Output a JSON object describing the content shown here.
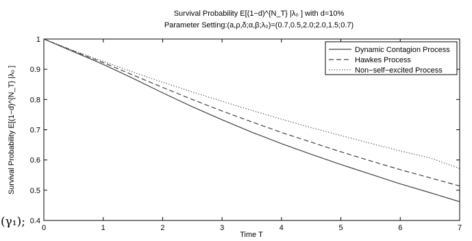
{
  "side_text": "(γ₁);",
  "chart_data": {
    "type": "line",
    "title": "Survival Probability E[(1−d)^{N_T} |λ₀ ] with d=10%",
    "subtitle": "Parameter Setting:(a,ρ,δ;α,β;λ₀)=(0.7,0.5,2.0;2.0,1.5;0.7)",
    "xlabel": "Time T",
    "ylabel": "Survival Probability E[(1−d)^{N_T} |λ₀ ]",
    "xlim": [
      0,
      7
    ],
    "ylim": [
      0.4,
      1
    ],
    "xticks": [
      0,
      1,
      2,
      3,
      4,
      5,
      6,
      7
    ],
    "yticks": [
      0.4,
      0.5,
      0.6,
      0.7,
      0.8,
      0.9,
      1
    ],
    "grid": false,
    "legend_position": "top-right",
    "x": [
      0,
      0.5,
      1,
      1.5,
      2,
      2.5,
      3,
      3.5,
      4,
      4.5,
      5,
      5.5,
      6,
      6.5,
      7
    ],
    "series": [
      {
        "name": "Dynamic Contagion Process",
        "style": "solid",
        "color": "#404040",
        "values": [
          1.0,
          0.958,
          0.916,
          0.87,
          0.822,
          0.776,
          0.733,
          0.692,
          0.654,
          0.619,
          0.585,
          0.553,
          0.521,
          0.492,
          0.462
        ]
      },
      {
        "name": "Hawkes Process",
        "style": "dashed",
        "color": "#404040",
        "values": [
          1.0,
          0.96,
          0.922,
          0.881,
          0.84,
          0.8,
          0.762,
          0.726,
          0.691,
          0.659,
          0.627,
          0.597,
          0.568,
          0.541,
          0.514
        ]
      },
      {
        "name": "Non−self−excited Process",
        "style": "dotted",
        "color": "#404040",
        "values": [
          1.0,
          0.962,
          0.926,
          0.891,
          0.857,
          0.825,
          0.794,
          0.764,
          0.735,
          0.707,
          0.681,
          0.655,
          0.63,
          0.607,
          0.572
        ]
      }
    ]
  }
}
